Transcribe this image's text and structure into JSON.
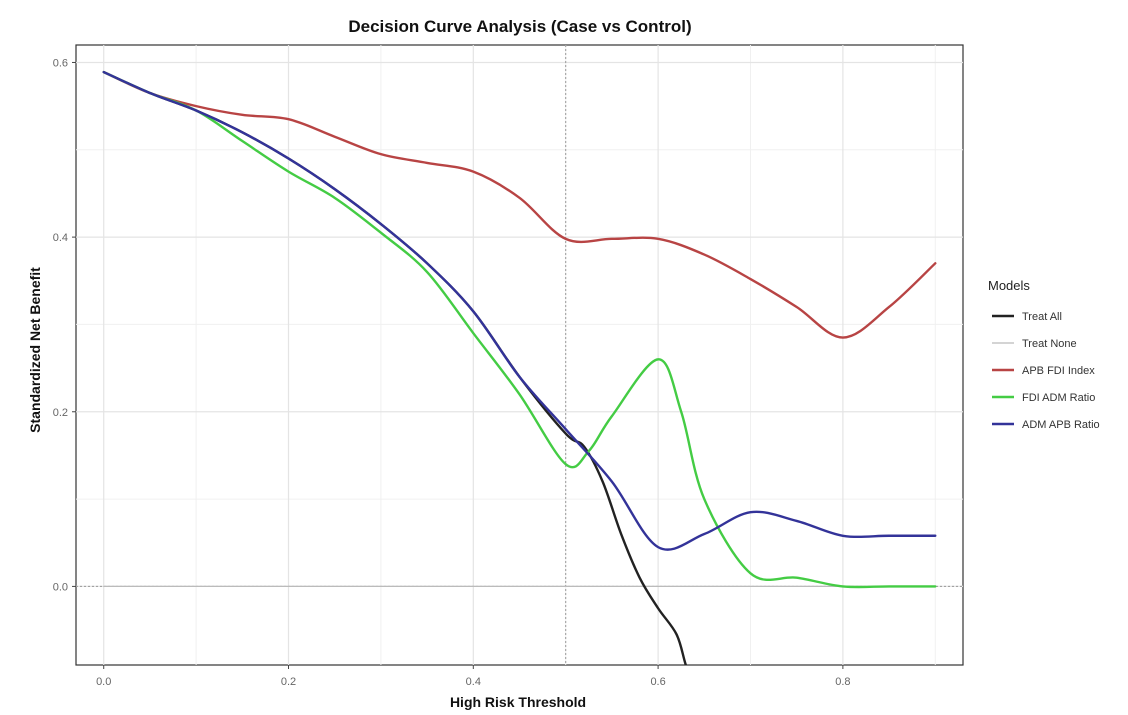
{
  "chart_data": {
    "type": "line",
    "title": "Decision Curve Analysis (Case vs Control)",
    "xlabel": "High Risk Threshold",
    "ylabel": "Standardized Net Benefit",
    "xlim": [
      -0.03,
      0.93
    ],
    "ylim": [
      -0.09,
      0.62
    ],
    "xticks": [
      0.0,
      0.2,
      0.4,
      0.6,
      0.8
    ],
    "xtick_labels": [
      "0.0",
      "0.2",
      "0.4",
      "0.6",
      "0.8"
    ],
    "yticks": [
      0.0,
      0.2,
      0.4,
      0.6
    ],
    "ytick_labels": [
      "0.0",
      "0.2",
      "0.4",
      "0.6"
    ],
    "grid": true,
    "vline": 0.5,
    "legend_title": "Models",
    "legend_position": "right",
    "series": [
      {
        "name": "Treat All",
        "color": "#222222",
        "x": [
          0.0,
          0.05,
          0.1,
          0.15,
          0.2,
          0.25,
          0.3,
          0.35,
          0.4,
          0.45,
          0.5,
          0.52,
          0.54,
          0.56,
          0.58,
          0.6,
          0.62,
          0.63,
          0.64
        ],
        "y": [
          0.589,
          0.565,
          0.545,
          0.52,
          0.49,
          0.455,
          0.415,
          0.37,
          0.315,
          0.24,
          0.175,
          0.16,
          0.12,
          0.06,
          0.01,
          -0.025,
          -0.055,
          -0.09,
          -0.12
        ]
      },
      {
        "name": "Treat None",
        "color": "#bbbbbb",
        "x": [
          0.0,
          0.9
        ],
        "y": [
          0.0,
          0.0
        ]
      },
      {
        "name": "APB FDI Index",
        "color": "#b84444",
        "x": [
          0.0,
          0.05,
          0.1,
          0.15,
          0.2,
          0.25,
          0.3,
          0.35,
          0.4,
          0.45,
          0.5,
          0.55,
          0.6,
          0.65,
          0.7,
          0.75,
          0.8,
          0.85,
          0.9
        ],
        "y": [
          0.589,
          0.565,
          0.55,
          0.54,
          0.535,
          0.515,
          0.495,
          0.485,
          0.475,
          0.445,
          0.398,
          0.398,
          0.398,
          0.38,
          0.352,
          0.32,
          0.285,
          0.32,
          0.37
        ]
      },
      {
        "name": "FDI ADM Ratio",
        "color": "#44cc44",
        "x": [
          0.0,
          0.05,
          0.1,
          0.15,
          0.2,
          0.25,
          0.3,
          0.35,
          0.4,
          0.45,
          0.5,
          0.525,
          0.55,
          0.6,
          0.625,
          0.65,
          0.7,
          0.75,
          0.8,
          0.85,
          0.9
        ],
        "y": [
          0.589,
          0.565,
          0.545,
          0.51,
          0.475,
          0.445,
          0.405,
          0.36,
          0.29,
          0.22,
          0.14,
          0.155,
          0.195,
          0.26,
          0.2,
          0.1,
          0.015,
          0.01,
          0.0,
          0.0,
          0.0
        ]
      },
      {
        "name": "ADM APB Ratio",
        "color": "#333399",
        "x": [
          0.0,
          0.05,
          0.1,
          0.15,
          0.2,
          0.25,
          0.3,
          0.35,
          0.4,
          0.45,
          0.5,
          0.55,
          0.6,
          0.65,
          0.7,
          0.75,
          0.8,
          0.85,
          0.9
        ],
        "y": [
          0.589,
          0.565,
          0.545,
          0.52,
          0.49,
          0.455,
          0.415,
          0.37,
          0.315,
          0.24,
          0.18,
          0.12,
          0.045,
          0.06,
          0.085,
          0.075,
          0.058,
          0.058,
          0.058
        ]
      }
    ]
  }
}
